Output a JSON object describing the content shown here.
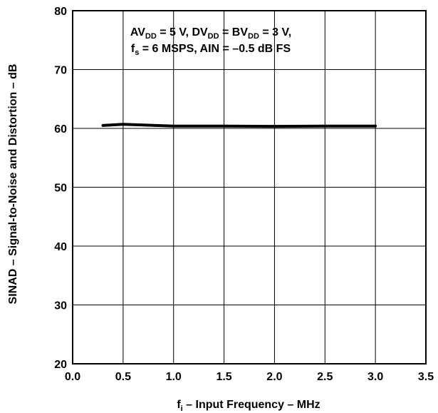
{
  "chart_data": {
    "type": "line",
    "xlabel": {
      "prefix": "f",
      "subscript": "i",
      "suffix": " – Input Frequency – MHz"
    },
    "ylabel": "SINAD – Signal-to-Noise and Distortion – dB",
    "xlim": [
      0.0,
      3.5
    ],
    "ylim": [
      20,
      80
    ],
    "x_ticks": [
      "0.0",
      "0.5",
      "1.0",
      "1.5",
      "2.0",
      "2.5",
      "3.0",
      "3.5"
    ],
    "y_ticks": [
      "20",
      "30",
      "40",
      "50",
      "60",
      "70",
      "80"
    ],
    "grid": true,
    "annotation": {
      "line1": {
        "p1": "AV",
        "s1": "DD",
        "p2": " = 5 V, DV",
        "s2": "DD",
        "p3": " = BV",
        "s3": "DD",
        "p4": " = 3 V,"
      },
      "line2": {
        "p1": "f",
        "s1": "s",
        "p2": " = 6 MSPS, AIN = –0.5 dB FS"
      }
    },
    "series": [
      {
        "x": [
          0.3,
          0.5,
          0.75,
          1.0,
          1.5,
          2.0,
          2.5,
          3.0
        ],
        "y": [
          60.5,
          60.7,
          60.55,
          60.4,
          60.4,
          60.35,
          60.4,
          60.4
        ],
        "color": "#000000"
      }
    ]
  }
}
